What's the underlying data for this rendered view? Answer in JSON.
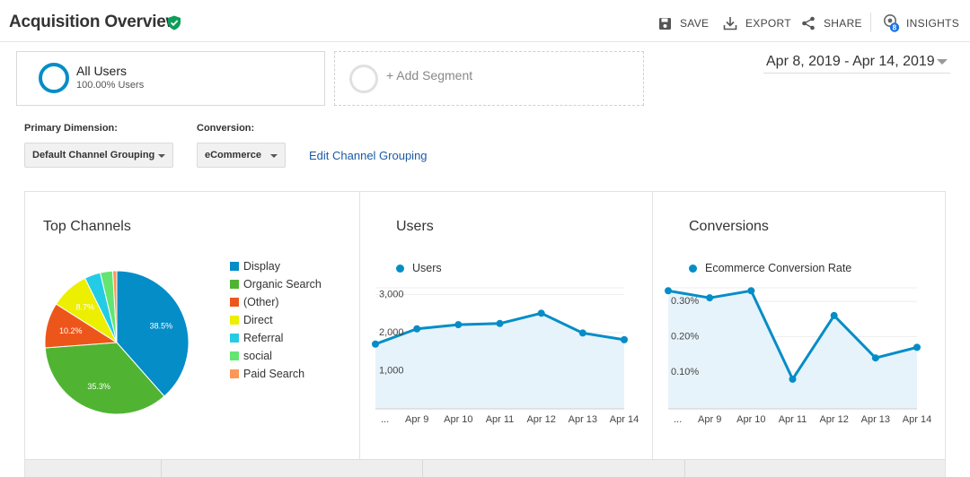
{
  "header": {
    "title": "Acquisition Overview",
    "tools": {
      "save": "SAVE",
      "export": "EXPORT",
      "share": "SHARE",
      "insights": "INSIGHTS",
      "insights_badge": "8"
    }
  },
  "segments": {
    "all_users": {
      "name": "All Users",
      "sub": "100.00% Users"
    },
    "add_segment": "+ Add Segment"
  },
  "date_range": "Apr 8, 2019 - Apr 14, 2019",
  "controls": {
    "primary_dimension_label": "Primary Dimension:",
    "primary_dimension_value": "Default Channel Grouping",
    "conversion_label": "Conversion:",
    "conversion_value": "eCommerce",
    "edit_link": "Edit Channel Grouping"
  },
  "panels": {
    "top_channels_title": "Top Channels",
    "users_title": "Users",
    "conversions_title": "Conversions"
  },
  "colors": {
    "accent": "#058dc7",
    "area_fill": "#e6f3fa",
    "link": "#1a5aa6"
  },
  "chart_data": [
    {
      "type": "pie",
      "title": "Top Channels",
      "slices": [
        {
          "name": "Display",
          "value": 38.5,
          "label": "38.5%",
          "color": "#058dc7"
        },
        {
          "name": "Organic Search",
          "value": 35.3,
          "label": "35.3%",
          "color": "#50b432"
        },
        {
          "name": "(Other)",
          "value": 10.2,
          "label": "10.2%",
          "color": "#ed561b"
        },
        {
          "name": "Direct",
          "value": 8.7,
          "label": "8.7%",
          "color": "#edef00"
        },
        {
          "name": "Referral",
          "value": 3.6,
          "label": "",
          "color": "#24cbe5"
        },
        {
          "name": "social",
          "value": 2.8,
          "label": "",
          "color": "#64e572"
        },
        {
          "name": "Paid Search",
          "value": 0.9,
          "label": "",
          "color": "#ff9655"
        }
      ],
      "legend_position": "right"
    },
    {
      "type": "line",
      "title": "Users",
      "categories": [
        "...",
        "Apr 9",
        "Apr 10",
        "Apr 11",
        "Apr 12",
        "Apr 13",
        "Apr 14"
      ],
      "series": [
        {
          "name": "Users",
          "values": [
            1700,
            2100,
            2210,
            2240,
            2510,
            1990,
            1815
          ],
          "color": "#058dc7"
        }
      ],
      "yticks": [
        "1,000",
        "2,000",
        "3,000"
      ],
      "ytick_values": [
        1000,
        2000,
        3000
      ],
      "ylim": [
        0,
        3200
      ],
      "area": true,
      "grid": true
    },
    {
      "type": "line",
      "title": "Conversions",
      "categories": [
        "...",
        "Apr 9",
        "Apr 10",
        "Apr 11",
        "Apr 12",
        "Apr 13",
        "Apr 14"
      ],
      "series": [
        {
          "name": "Ecommerce Conversion Rate",
          "values": [
            0.33,
            0.31,
            0.33,
            0.08,
            0.26,
            0.14,
            0.17
          ],
          "color": "#058dc7"
        }
      ],
      "yticks": [
        "0.10%",
        "0.20%",
        "0.30%"
      ],
      "ytick_values": [
        0.1,
        0.2,
        0.3
      ],
      "ylim": [
        -0.004,
        0.3409
      ],
      "area": true,
      "grid": true
    }
  ]
}
